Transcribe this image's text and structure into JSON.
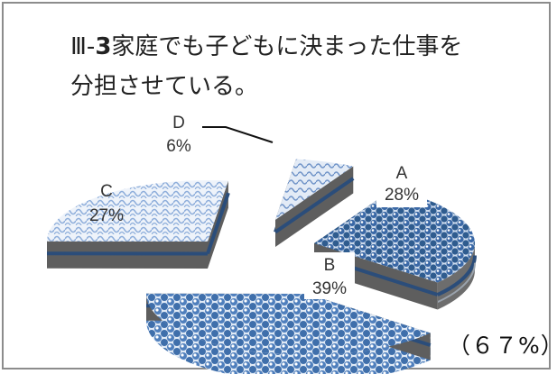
{
  "title": {
    "prefix": "Ⅲ-",
    "number": "3",
    "line1_rest": "家庭でも子どもに決まった仕事を",
    "line2": "分担させている。"
  },
  "note": "（６７%）",
  "colors": {
    "frame": "#8c8c8c",
    "pattern_dark": "#2f5c8f",
    "pattern_mid": "#5b87bf",
    "side": "#5c5c5c",
    "stripe": "#2b4d7a"
  },
  "chart_data": {
    "type": "pie",
    "exploded": true,
    "three_d": true,
    "slices": [
      {
        "category": "A",
        "label": "28%",
        "value": 28
      },
      {
        "category": "B",
        "label": "39%",
        "value": 39
      },
      {
        "category": "C",
        "label": "27%",
        "value": 27
      },
      {
        "category": "D",
        "label": "6%",
        "value": 6
      }
    ]
  }
}
